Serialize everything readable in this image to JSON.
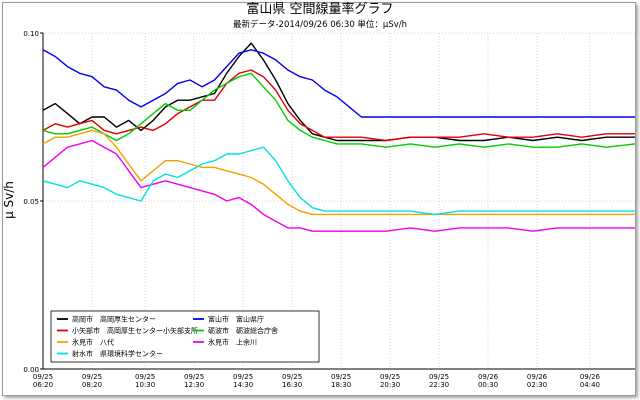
{
  "chart_data": {
    "type": "line",
    "title": "富山県 空間線量率グラフ",
    "subtitle": "最新データ-2014/09/26 06:30 単位：μSv/h",
    "ylabel": "μ Sv/h",
    "xlabel": "",
    "ylim": [
      0.0,
      0.1
    ],
    "y_ticks": [
      "0.10",
      "0.05",
      "0.00"
    ],
    "x_tick_labels": [
      [
        "09/25",
        "06:20"
      ],
      [
        "09/25",
        "08:20"
      ],
      [
        "09/25",
        "10:30"
      ],
      [
        "09/25",
        "12:30"
      ],
      [
        "09/25",
        "14:30"
      ],
      [
        "09/25",
        "16:30"
      ],
      [
        "09/25",
        "18:30"
      ],
      [
        "09/25",
        "20:30"
      ],
      [
        "09/25",
        "22:30"
      ],
      [
        "09/26",
        "00:30"
      ],
      [
        "09/26",
        "02:30"
      ],
      [
        "09/26",
        "04:40"
      ]
    ],
    "x_ticks_hours": [
      0,
      2,
      4.17,
      6.17,
      8.17,
      10.17,
      12.17,
      14.17,
      16.17,
      18.17,
      20.17,
      22.33
    ],
    "x_range_hours": [
      0,
      24.17
    ],
    "grid": true,
    "legend_position": "bottom-left inside plot",
    "series": [
      {
        "name": "高岡市　高岡厚生センター",
        "color": "#000000",
        "x": [
          0,
          0.5,
          1,
          1.5,
          2,
          2.5,
          3,
          3.5,
          4,
          4.5,
          5,
          5.5,
          6,
          6.5,
          7,
          7.5,
          8,
          8.5,
          9,
          9.5,
          10,
          10.5,
          11,
          11.5,
          12,
          13,
          14,
          15,
          16,
          17,
          18,
          19,
          20,
          21,
          22,
          23,
          24.17
        ],
        "values": [
          0.077,
          0.079,
          0.076,
          0.073,
          0.075,
          0.075,
          0.072,
          0.074,
          0.071,
          0.074,
          0.078,
          0.08,
          0.08,
          0.081,
          0.082,
          0.088,
          0.093,
          0.097,
          0.092,
          0.086,
          0.079,
          0.074,
          0.07,
          0.069,
          0.068,
          0.068,
          0.068,
          0.069,
          0.069,
          0.068,
          0.068,
          0.069,
          0.068,
          0.069,
          0.068,
          0.069,
          0.069
        ]
      },
      {
        "name": "富山市　富山県庁",
        "color": "#0000ee",
        "x": [
          0,
          0.5,
          1,
          1.5,
          2,
          2.5,
          3,
          3.5,
          4,
          4.5,
          5,
          5.5,
          6,
          6.5,
          7,
          7.5,
          8,
          8.5,
          9,
          9.5,
          10,
          10.5,
          11,
          11.5,
          12,
          12.5,
          13,
          14,
          15,
          16,
          17,
          18,
          19,
          20,
          21,
          22,
          23,
          24.17
        ],
        "values": [
          0.095,
          0.093,
          0.09,
          0.088,
          0.087,
          0.084,
          0.083,
          0.08,
          0.078,
          0.08,
          0.082,
          0.085,
          0.086,
          0.084,
          0.086,
          0.09,
          0.094,
          0.095,
          0.094,
          0.092,
          0.089,
          0.087,
          0.086,
          0.083,
          0.081,
          0.078,
          0.075,
          0.075,
          0.075,
          0.075,
          0.075,
          0.075,
          0.075,
          0.075,
          0.075,
          0.075,
          0.075,
          0.075
        ]
      },
      {
        "name": "小矢部市　高岡厚生センター小矢部支所",
        "color": "#e00000",
        "x": [
          0,
          0.5,
          1,
          1.5,
          2,
          2.5,
          3,
          3.5,
          4,
          4.5,
          5,
          5.5,
          6,
          6.5,
          7,
          7.5,
          8,
          8.5,
          9,
          9.5,
          10,
          10.5,
          11,
          11.5,
          12,
          13,
          14,
          15,
          16,
          17,
          18,
          19,
          20,
          21,
          22,
          23,
          24.17
        ],
        "values": [
          0.071,
          0.073,
          0.072,
          0.073,
          0.074,
          0.071,
          0.07,
          0.071,
          0.072,
          0.071,
          0.073,
          0.076,
          0.078,
          0.08,
          0.08,
          0.085,
          0.088,
          0.089,
          0.087,
          0.083,
          0.077,
          0.073,
          0.071,
          0.069,
          0.069,
          0.069,
          0.068,
          0.069,
          0.069,
          0.069,
          0.07,
          0.069,
          0.069,
          0.07,
          0.069,
          0.07,
          0.07
        ]
      },
      {
        "name": "砺波市　砺波総合庁舎",
        "color": "#00cc00",
        "x": [
          0,
          0.5,
          1,
          1.5,
          2,
          2.5,
          3,
          3.5,
          4,
          4.5,
          5,
          5.5,
          6,
          6.5,
          7,
          7.5,
          8,
          8.5,
          9,
          9.5,
          10,
          10.5,
          11,
          11.5,
          12,
          13,
          14,
          15,
          16,
          17,
          18,
          19,
          20,
          21,
          22,
          23,
          24.17
        ],
        "values": [
          0.071,
          0.07,
          0.07,
          0.071,
          0.072,
          0.07,
          0.068,
          0.07,
          0.073,
          0.076,
          0.079,
          0.077,
          0.077,
          0.08,
          0.083,
          0.085,
          0.087,
          0.088,
          0.084,
          0.08,
          0.074,
          0.071,
          0.069,
          0.068,
          0.067,
          0.067,
          0.066,
          0.067,
          0.066,
          0.067,
          0.066,
          0.067,
          0.066,
          0.066,
          0.067,
          0.066,
          0.067
        ]
      },
      {
        "name": "氷見市　八代",
        "color": "#f0a000",
        "x": [
          0,
          0.5,
          1,
          1.5,
          2,
          2.5,
          3,
          3.5,
          4,
          4.5,
          5,
          5.5,
          6,
          6.5,
          7,
          7.5,
          8,
          8.5,
          9,
          9.5,
          10,
          10.5,
          11,
          11.5,
          12,
          13,
          14,
          15,
          16,
          17,
          18,
          19,
          20,
          21,
          22,
          23,
          24.17
        ],
        "values": [
          0.067,
          0.069,
          0.069,
          0.07,
          0.071,
          0.07,
          0.066,
          0.061,
          0.056,
          0.059,
          0.062,
          0.062,
          0.061,
          0.06,
          0.06,
          0.059,
          0.058,
          0.057,
          0.055,
          0.052,
          0.049,
          0.047,
          0.046,
          0.046,
          0.046,
          0.046,
          0.046,
          0.046,
          0.046,
          0.046,
          0.046,
          0.046,
          0.046,
          0.046,
          0.046,
          0.046,
          0.046
        ]
      },
      {
        "name": "氷見市　上余川",
        "color": "#ee00ee",
        "x": [
          0,
          0.5,
          1,
          1.5,
          2,
          2.5,
          3,
          3.5,
          4,
          4.5,
          5,
          5.5,
          6,
          6.5,
          7,
          7.5,
          8,
          8.5,
          9,
          9.5,
          10,
          10.5,
          11,
          11.5,
          12,
          13,
          14,
          15,
          16,
          17,
          18,
          19,
          20,
          21,
          22,
          23,
          24.17
        ],
        "values": [
          0.06,
          0.063,
          0.066,
          0.067,
          0.068,
          0.066,
          0.064,
          0.059,
          0.054,
          0.055,
          0.056,
          0.055,
          0.054,
          0.053,
          0.052,
          0.05,
          0.051,
          0.049,
          0.046,
          0.044,
          0.042,
          0.042,
          0.041,
          0.041,
          0.041,
          0.041,
          0.041,
          0.042,
          0.041,
          0.042,
          0.042,
          0.042,
          0.041,
          0.042,
          0.042,
          0.042,
          0.042
        ]
      },
      {
        "name": "射水市　県環境科学センター",
        "color": "#00e0e0",
        "x": [
          0,
          0.5,
          1,
          1.5,
          2,
          2.5,
          3,
          3.5,
          4,
          4.5,
          5,
          5.5,
          6,
          6.5,
          7,
          7.5,
          8,
          8.5,
          9,
          9.5,
          10,
          10.5,
          11,
          11.5,
          12,
          13,
          14,
          15,
          16,
          17,
          18,
          19,
          20,
          21,
          22,
          23,
          24.17
        ],
        "values": [
          0.056,
          0.055,
          0.054,
          0.056,
          0.055,
          0.054,
          0.052,
          0.051,
          0.05,
          0.056,
          0.058,
          0.057,
          0.059,
          0.061,
          0.062,
          0.064,
          0.064,
          0.065,
          0.066,
          0.062,
          0.056,
          0.051,
          0.048,
          0.047,
          0.047,
          0.047,
          0.047,
          0.047,
          0.046,
          0.047,
          0.047,
          0.047,
          0.047,
          0.047,
          0.047,
          0.047,
          0.047
        ]
      }
    ],
    "legend_layout": [
      [
        "高岡市　高岡厚生センター",
        "富山市　富山県庁"
      ],
      [
        "小矢部市　高岡厚生センター小矢部支所",
        "砺波市　砺波総合庁舎"
      ],
      [
        "氷見市　八代",
        "氷見市　上余川"
      ],
      [
        "射水市　県環境科学センター",
        ""
      ]
    ]
  }
}
